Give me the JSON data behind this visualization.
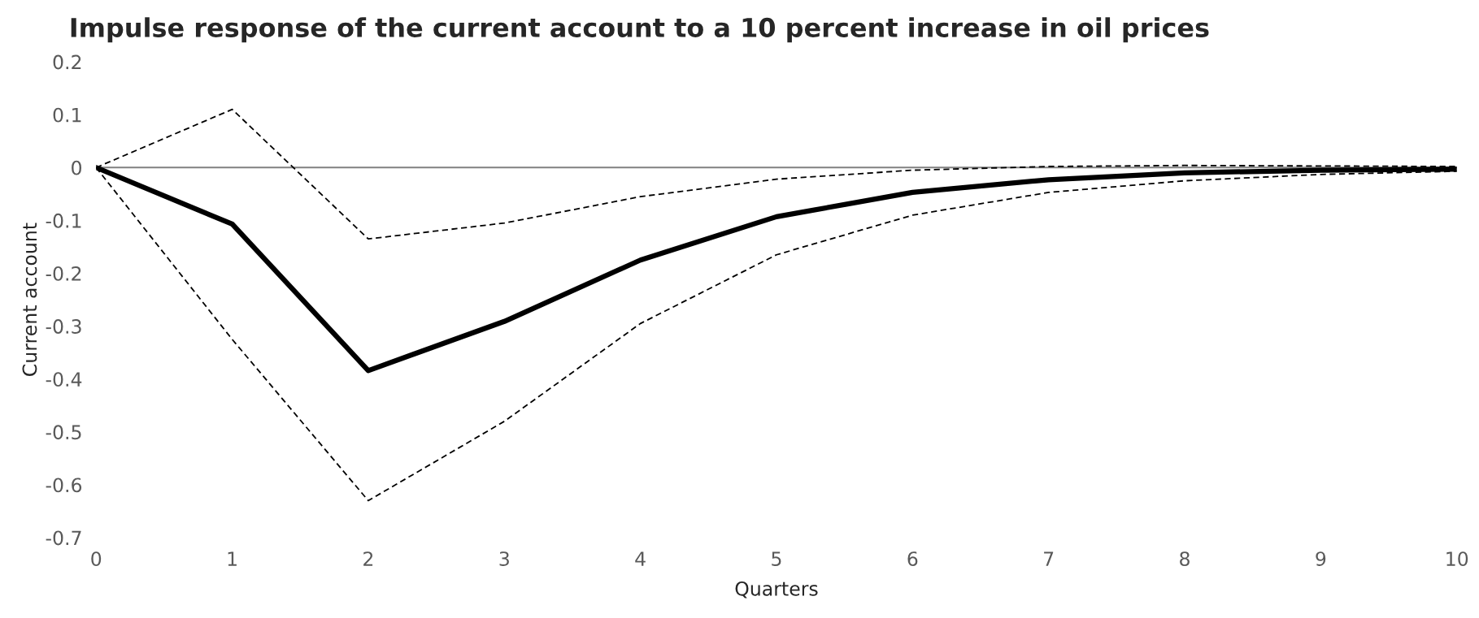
{
  "chart_data": {
    "type": "line",
    "title": "Impulse response of the current account to a 10 percent increase in oil prices",
    "xlabel": "Quarters",
    "ylabel": "Current account",
    "categories": [
      "0",
      "1",
      "2",
      "3",
      "4",
      "5",
      "6",
      "7",
      "8",
      "9",
      "10"
    ],
    "series": [
      {
        "color": "#000000",
        "line_style": "solid",
        "values": [
          0,
          -0.107,
          -0.384,
          -0.291,
          -0.175,
          -0.093,
          -0.047,
          -0.023,
          -0.01,
          -0.005,
          -0.003
        ]
      },
      {
        "color": "#000000",
        "line_style": "dashed",
        "values": [
          0,
          0.11,
          -0.135,
          -0.105,
          -0.055,
          -0.022,
          -0.005,
          0.002,
          0.004,
          0.003,
          0.002
        ]
      },
      {
        "color": "#000000",
        "line_style": "dashed",
        "values": [
          0,
          -0.325,
          -0.63,
          -0.48,
          -0.295,
          -0.165,
          -0.09,
          -0.047,
          -0.025,
          -0.013,
          -0.007
        ]
      }
    ],
    "ylim": [
      -0.7,
      0.2
    ],
    "yticks": [
      -0.7,
      -0.6,
      -0.5,
      -0.4,
      -0.3,
      -0.2,
      -0.1,
      0,
      0.1,
      0.2
    ],
    "ref_lines": [
      {
        "axis": "y",
        "value": 0,
        "color": "#808080"
      }
    ],
    "grid": false,
    "legend": false,
    "marker": "none"
  }
}
